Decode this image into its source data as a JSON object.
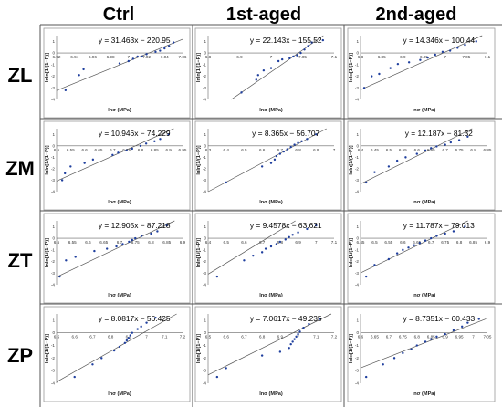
{
  "column_headers": [
    "Ctrl",
    "1st-aged",
    "2nd-aged"
  ],
  "row_headers": [
    "ZL",
    "ZM",
    "ZT",
    "ZP"
  ],
  "chart_data": [
    {
      "type": "scatter",
      "row": "ZL",
      "column": "Ctrl",
      "xlabel": "lnσ (MPa)",
      "ylabel": "lnln[1/(1−P)]",
      "x_ticks": [
        "6.92",
        "6.94",
        "6.96",
        "6.98",
        "7",
        "7.02",
        "7.04",
        "7.06"
      ],
      "y_ticks": [
        "1",
        "0",
        "-1",
        "-2",
        "-3",
        "-4"
      ],
      "xlim": [
        6.92,
        7.06
      ],
      "ylim": [
        -4,
        1.5
      ],
      "equation": "y = 31.463x − 220.95",
      "fit": {
        "slope": 31.463,
        "intercept": -220.95
      },
      "points": [
        [
          6.93,
          -3.2
        ],
        [
          6.945,
          -1.9
        ],
        [
          6.95,
          -1.4
        ],
        [
          6.99,
          -0.9
        ],
        [
          7.0,
          -0.7
        ],
        [
          7.005,
          -0.5
        ],
        [
          7.01,
          -0.3
        ],
        [
          7.015,
          -0.3
        ],
        [
          7.02,
          -0.1
        ],
        [
          7.03,
          0.1
        ],
        [
          7.035,
          0.2
        ],
        [
          7.04,
          0.4
        ],
        [
          7.045,
          0.6
        ],
        [
          7.05,
          0.9
        ]
      ]
    },
    {
      "type": "scatter",
      "row": "ZL",
      "column": "1st-aged",
      "xlabel": "lnσ (MPa)",
      "ylabel": "lnln[1/(1−P)]",
      "x_ticks": [
        "6.8",
        "6.9",
        "7",
        "7.05",
        "7.1"
      ],
      "y_ticks": [
        "1",
        "0",
        "-1",
        "-2",
        "-3",
        "-4"
      ],
      "xlim": [
        6.78,
        7.12
      ],
      "ylim": [
        -4,
        1.5
      ],
      "equation": "y = 22.143x − 155.52",
      "fit": {
        "slope": 22.143,
        "intercept": -155.52
      },
      "points": [
        [
          6.87,
          -3.4
        ],
        [
          6.91,
          -2.3
        ],
        [
          6.915,
          -1.9
        ],
        [
          6.93,
          -1.5
        ],
        [
          6.95,
          -1.3
        ],
        [
          6.97,
          -0.7
        ],
        [
          6.98,
          -0.55
        ],
        [
          7.0,
          -0.45
        ],
        [
          7.01,
          -0.3
        ],
        [
          7.02,
          -0.2
        ],
        [
          7.03,
          0.0
        ],
        [
          7.04,
          0.3
        ],
        [
          7.05,
          0.6
        ],
        [
          7.06,
          0.9
        ],
        [
          7.09,
          1.1
        ]
      ]
    },
    {
      "type": "scatter",
      "row": "ZL",
      "column": "2nd-aged",
      "xlabel": "lnσ (MPa)",
      "ylabel": "lnln[1/(1−P)]",
      "x_ticks": [
        "6.8",
        "6.85",
        "6.9",
        "6.95",
        "7",
        "7.05",
        "7.1"
      ],
      "y_ticks": [
        "1",
        "0",
        "-1",
        "-2",
        "-3",
        "-4"
      ],
      "xlim": [
        6.78,
        7.12
      ],
      "ylim": [
        -4,
        1.5
      ],
      "equation": "y = 14.346x − 100.44",
      "fit": {
        "slope": 14.346,
        "intercept": -100.44
      },
      "points": [
        [
          6.79,
          -3.0
        ],
        [
          6.81,
          -2.0
        ],
        [
          6.83,
          -1.8
        ],
        [
          6.86,
          -1.3
        ],
        [
          6.88,
          -0.95
        ],
        [
          6.91,
          -0.8
        ],
        [
          6.94,
          -0.6
        ],
        [
          6.96,
          -0.4
        ],
        [
          6.98,
          -0.15
        ],
        [
          7.0,
          0.1
        ],
        [
          7.02,
          0.2
        ],
        [
          7.04,
          0.45
        ],
        [
          7.06,
          0.7
        ],
        [
          7.09,
          1.0
        ]
      ]
    },
    {
      "type": "scatter",
      "row": "ZM",
      "column": "Ctrl",
      "xlabel": "lnσ (MPa)",
      "ylabel": "lnln[1/(1−P)]",
      "x_ticks": [
        "6.5",
        "6.55",
        "6.6",
        "6.65",
        "6.7",
        "6.75",
        "6.8",
        "6.85",
        "6.9",
        "6.95"
      ],
      "y_ticks": [
        "1",
        "0",
        "-1",
        "-2",
        "-3",
        "-4"
      ],
      "xlim": [
        6.5,
        6.95
      ],
      "ylim": [
        -4,
        1.5
      ],
      "equation": "y = 10.946x − 74.229",
      "fit": {
        "slope": 10.946,
        "intercept": -74.229
      },
      "points": [
        [
          6.52,
          -3.0
        ],
        [
          6.53,
          -2.4
        ],
        [
          6.55,
          -1.8
        ],
        [
          6.6,
          -1.5
        ],
        [
          6.63,
          -1.2
        ],
        [
          6.7,
          -0.8
        ],
        [
          6.72,
          -0.6
        ],
        [
          6.75,
          -0.4
        ],
        [
          6.77,
          -0.25
        ],
        [
          6.8,
          0.0
        ],
        [
          6.82,
          0.2
        ],
        [
          6.85,
          0.4
        ],
        [
          6.87,
          0.6
        ],
        [
          6.9,
          1.0
        ]
      ]
    },
    {
      "type": "scatter",
      "row": "ZM",
      "column": "1st-aged",
      "xlabel": "lnσ (MPa)",
      "ylabel": "lnln[1/(1−P)]",
      "x_ticks": [
        "6.3",
        "6.4",
        "6.5",
        "6.6",
        "6.7",
        "6.8",
        "6.9",
        "7"
      ],
      "y_ticks": [
        "1",
        "0",
        "-1",
        "-2",
        "-3",
        "-4"
      ],
      "xlim": [
        6.3,
        7.0
      ],
      "ylim": [
        -4,
        1.5
      ],
      "equation": "y = 8.365x − 56.707",
      "fit": {
        "slope": 8.365,
        "intercept": -56.707
      },
      "points": [
        [
          6.4,
          -3.2
        ],
        [
          6.6,
          -1.8
        ],
        [
          6.65,
          -1.5
        ],
        [
          6.67,
          -1.2
        ],
        [
          6.68,
          -0.9
        ],
        [
          6.7,
          -0.7
        ],
        [
          6.72,
          -0.5
        ],
        [
          6.74,
          -0.3
        ],
        [
          6.76,
          -0.1
        ],
        [
          6.78,
          0.1
        ],
        [
          6.8,
          0.25
        ],
        [
          6.82,
          0.4
        ],
        [
          6.85,
          0.6
        ],
        [
          6.9,
          1.0
        ]
      ]
    },
    {
      "type": "scatter",
      "row": "ZM",
      "column": "2nd-aged",
      "xlabel": "lnσ (MPa)",
      "ylabel": "lnln[1/(1−P)]",
      "x_ticks": [
        "6.4",
        "6.45",
        "6.5",
        "6.55",
        "6.6",
        "6.65",
        "6.7",
        "6.75",
        "6.8",
        "6.85"
      ],
      "y_ticks": [
        "1",
        "0",
        "-1",
        "-2",
        "-3",
        "-4"
      ],
      "xlim": [
        6.4,
        6.85
      ],
      "ylim": [
        -4,
        1.5
      ],
      "equation": "y = 12.187x − 81.32",
      "fit": {
        "slope": 12.187,
        "intercept": -81.32
      },
      "points": [
        [
          6.42,
          -3.2
        ],
        [
          6.45,
          -2.3
        ],
        [
          6.5,
          -1.8
        ],
        [
          6.53,
          -1.3
        ],
        [
          6.56,
          -1.0
        ],
        [
          6.6,
          -0.7
        ],
        [
          6.63,
          -0.4
        ],
        [
          6.65,
          -0.2
        ],
        [
          6.67,
          -0.05
        ],
        [
          6.7,
          0.1
        ],
        [
          6.72,
          0.3
        ],
        [
          6.75,
          0.5
        ],
        [
          6.78,
          0.8
        ]
      ]
    },
    {
      "type": "scatter",
      "row": "ZT",
      "column": "Ctrl",
      "xlabel": "lnσ (MPa)",
      "ylabel": "lnln[1/(1−P)]",
      "x_ticks": [
        "6.5",
        "6.55",
        "6.6",
        "6.65",
        "6.7",
        "6.75",
        "6.8",
        "6.85",
        "6.9"
      ],
      "y_ticks": [
        "1",
        "0",
        "-1",
        "-2",
        "-3",
        "-4"
      ],
      "xlim": [
        6.5,
        6.9
      ],
      "ylim": [
        -4,
        1.5
      ],
      "equation": "y = 12.905x − 87.218",
      "fit": {
        "slope": 12.905,
        "intercept": -87.218
      },
      "points": [
        [
          6.51,
          -3.3
        ],
        [
          6.53,
          -1.9
        ],
        [
          6.56,
          -1.6
        ],
        [
          6.62,
          -1.1
        ],
        [
          6.66,
          -0.9
        ],
        [
          6.69,
          -0.7
        ],
        [
          6.71,
          -0.5
        ],
        [
          6.73,
          -0.3
        ],
        [
          6.74,
          -0.15
        ],
        [
          6.75,
          0.0
        ],
        [
          6.77,
          0.2
        ],
        [
          6.8,
          0.4
        ],
        [
          6.82,
          0.6
        ],
        [
          6.85,
          1.1
        ]
      ]
    },
    {
      "type": "scatter",
      "row": "ZT",
      "column": "1st-aged",
      "xlabel": "lnσ (MPa)",
      "ylabel": "lnln[1/(1−P)]",
      "x_ticks": [
        "6.4",
        "6.5",
        "6.6",
        "6.7",
        "6.8",
        "6.9",
        "7",
        "7.1"
      ],
      "y_ticks": [
        "1",
        "0",
        "-1",
        "-2",
        "-3",
        "-4"
      ],
      "xlim": [
        6.4,
        7.1
      ],
      "ylim": [
        -4,
        1.5
      ],
      "equation": "y = 9.4578x − 63.621",
      "fit": {
        "slope": 9.4578,
        "intercept": -63.621
      },
      "points": [
        [
          6.45,
          -3.3
        ],
        [
          6.6,
          -1.9
        ],
        [
          6.65,
          -1.5
        ],
        [
          6.7,
          -1.2
        ],
        [
          6.72,
          -0.9
        ],
        [
          6.75,
          -0.7
        ],
        [
          6.78,
          -0.5
        ],
        [
          6.8,
          -0.3
        ],
        [
          6.83,
          -0.1
        ],
        [
          6.85,
          0.1
        ],
        [
          6.87,
          0.3
        ],
        [
          6.9,
          0.5
        ],
        [
          6.95,
          0.8
        ],
        [
          7.0,
          1.1
        ]
      ]
    },
    {
      "type": "scatter",
      "row": "ZT",
      "column": "2nd-aged",
      "xlabel": "lnσ (MPa)",
      "ylabel": "lnln[1/(1−P)]",
      "x_ticks": [
        "6.45",
        "6.5",
        "6.55",
        "6.6",
        "6.65",
        "6.7",
        "6.75",
        "6.8",
        "6.85",
        "6.9"
      ],
      "y_ticks": [
        "1",
        "0",
        "-1",
        "-2",
        "-3",
        "-4"
      ],
      "xlim": [
        6.45,
        6.9
      ],
      "ylim": [
        -4,
        1.5
      ],
      "equation": "y = 11.787x − 79.013",
      "fit": {
        "slope": 11.787,
        "intercept": -79.013
      },
      "points": [
        [
          6.47,
          -3.3
        ],
        [
          6.5,
          -2.3
        ],
        [
          6.55,
          -1.8
        ],
        [
          6.58,
          -1.3
        ],
        [
          6.6,
          -1.0
        ],
        [
          6.62,
          -0.8
        ],
        [
          6.64,
          -0.6
        ],
        [
          6.66,
          -0.4
        ],
        [
          6.68,
          -0.2
        ],
        [
          6.7,
          0.0
        ],
        [
          6.72,
          0.2
        ],
        [
          6.75,
          0.4
        ],
        [
          6.78,
          0.6
        ],
        [
          6.82,
          1.0
        ]
      ]
    },
    {
      "type": "scatter",
      "row": "ZP",
      "column": "Ctrl",
      "xlabel": "lnσ (MPa)",
      "ylabel": "lnln[1/(1−P)]",
      "x_ticks": [
        "6.5",
        "6.6",
        "6.7",
        "6.8",
        "6.9",
        "7",
        "7.1",
        "7.2"
      ],
      "y_ticks": [
        "1",
        "0",
        "-1",
        "-2",
        "-3",
        "-4"
      ],
      "xlim": [
        6.5,
        7.2
      ],
      "ylim": [
        -4,
        1.5
      ],
      "equation": "y = 8.0817x − 56.425",
      "fit": {
        "slope": 8.0817,
        "intercept": -56.425
      },
      "points": [
        [
          6.6,
          -3.5
        ],
        [
          6.7,
          -2.5
        ],
        [
          6.75,
          -2.0
        ],
        [
          6.82,
          -1.4
        ],
        [
          6.85,
          -1.1
        ],
        [
          6.88,
          -0.8
        ],
        [
          6.89,
          -0.6
        ],
        [
          6.9,
          -0.4
        ],
        [
          6.91,
          -0.2
        ],
        [
          6.92,
          0.0
        ],
        [
          6.95,
          0.3
        ],
        [
          6.97,
          0.5
        ],
        [
          7.0,
          0.8
        ],
        [
          7.05,
          1.2
        ]
      ]
    },
    {
      "type": "scatter",
      "row": "ZP",
      "column": "1st-aged",
      "xlabel": "lnσ (MPa)",
      "ylabel": "lnln[1/(1−P)]",
      "x_ticks": [
        "6.5",
        "6.6",
        "6.7",
        "6.8",
        "6.9",
        "7",
        "7.1",
        "7.2"
      ],
      "y_ticks": [
        "1",
        "0",
        "-1",
        "-2",
        "-3",
        "-4"
      ],
      "xlim": [
        6.5,
        7.2
      ],
      "ylim": [
        -4,
        1.5
      ],
      "equation": "y = 7.0617x − 49.235",
      "fit": {
        "slope": 7.0617,
        "intercept": -49.235
      },
      "points": [
        [
          6.55,
          -3.5
        ],
        [
          6.6,
          -2.8
        ],
        [
          6.8,
          -1.8
        ],
        [
          6.9,
          -1.5
        ],
        [
          6.95,
          -1.2
        ],
        [
          6.96,
          -0.9
        ],
        [
          6.97,
          -0.7
        ],
        [
          6.98,
          -0.5
        ],
        [
          6.99,
          -0.3
        ],
        [
          7.0,
          -0.1
        ],
        [
          7.01,
          0.1
        ],
        [
          7.03,
          0.4
        ],
        [
          7.06,
          0.7
        ],
        [
          7.12,
          1.1
        ]
      ]
    },
    {
      "type": "scatter",
      "row": "ZP",
      "column": "2nd-aged",
      "xlabel": "lnσ (MPa)",
      "ylabel": "lnln[1/(1−P)]",
      "x_ticks": [
        "6.6",
        "6.65",
        "6.7",
        "6.75",
        "6.8",
        "6.85",
        "6.9",
        "6.95",
        "7",
        "7.05"
      ],
      "y_ticks": [
        "1",
        "0",
        "-1",
        "-2",
        "-3",
        "-4"
      ],
      "xlim": [
        6.6,
        7.05
      ],
      "ylim": [
        -4,
        1.5
      ],
      "equation": "y = 8.7351x − 60.433",
      "fit": {
        "slope": 8.7351,
        "intercept": -60.433
      },
      "points": [
        [
          6.62,
          -3.5
        ],
        [
          6.68,
          -2.5
        ],
        [
          6.72,
          -2.0
        ],
        [
          6.75,
          -1.6
        ],
        [
          6.78,
          -1.3
        ],
        [
          6.8,
          -1.0
        ],
        [
          6.83,
          -0.7
        ],
        [
          6.85,
          -0.5
        ],
        [
          6.87,
          -0.3
        ],
        [
          6.9,
          -0.1
        ],
        [
          6.93,
          0.2
        ],
        [
          6.96,
          0.5
        ],
        [
          6.98,
          0.8
        ],
        [
          7.02,
          1.1
        ]
      ]
    }
  ]
}
